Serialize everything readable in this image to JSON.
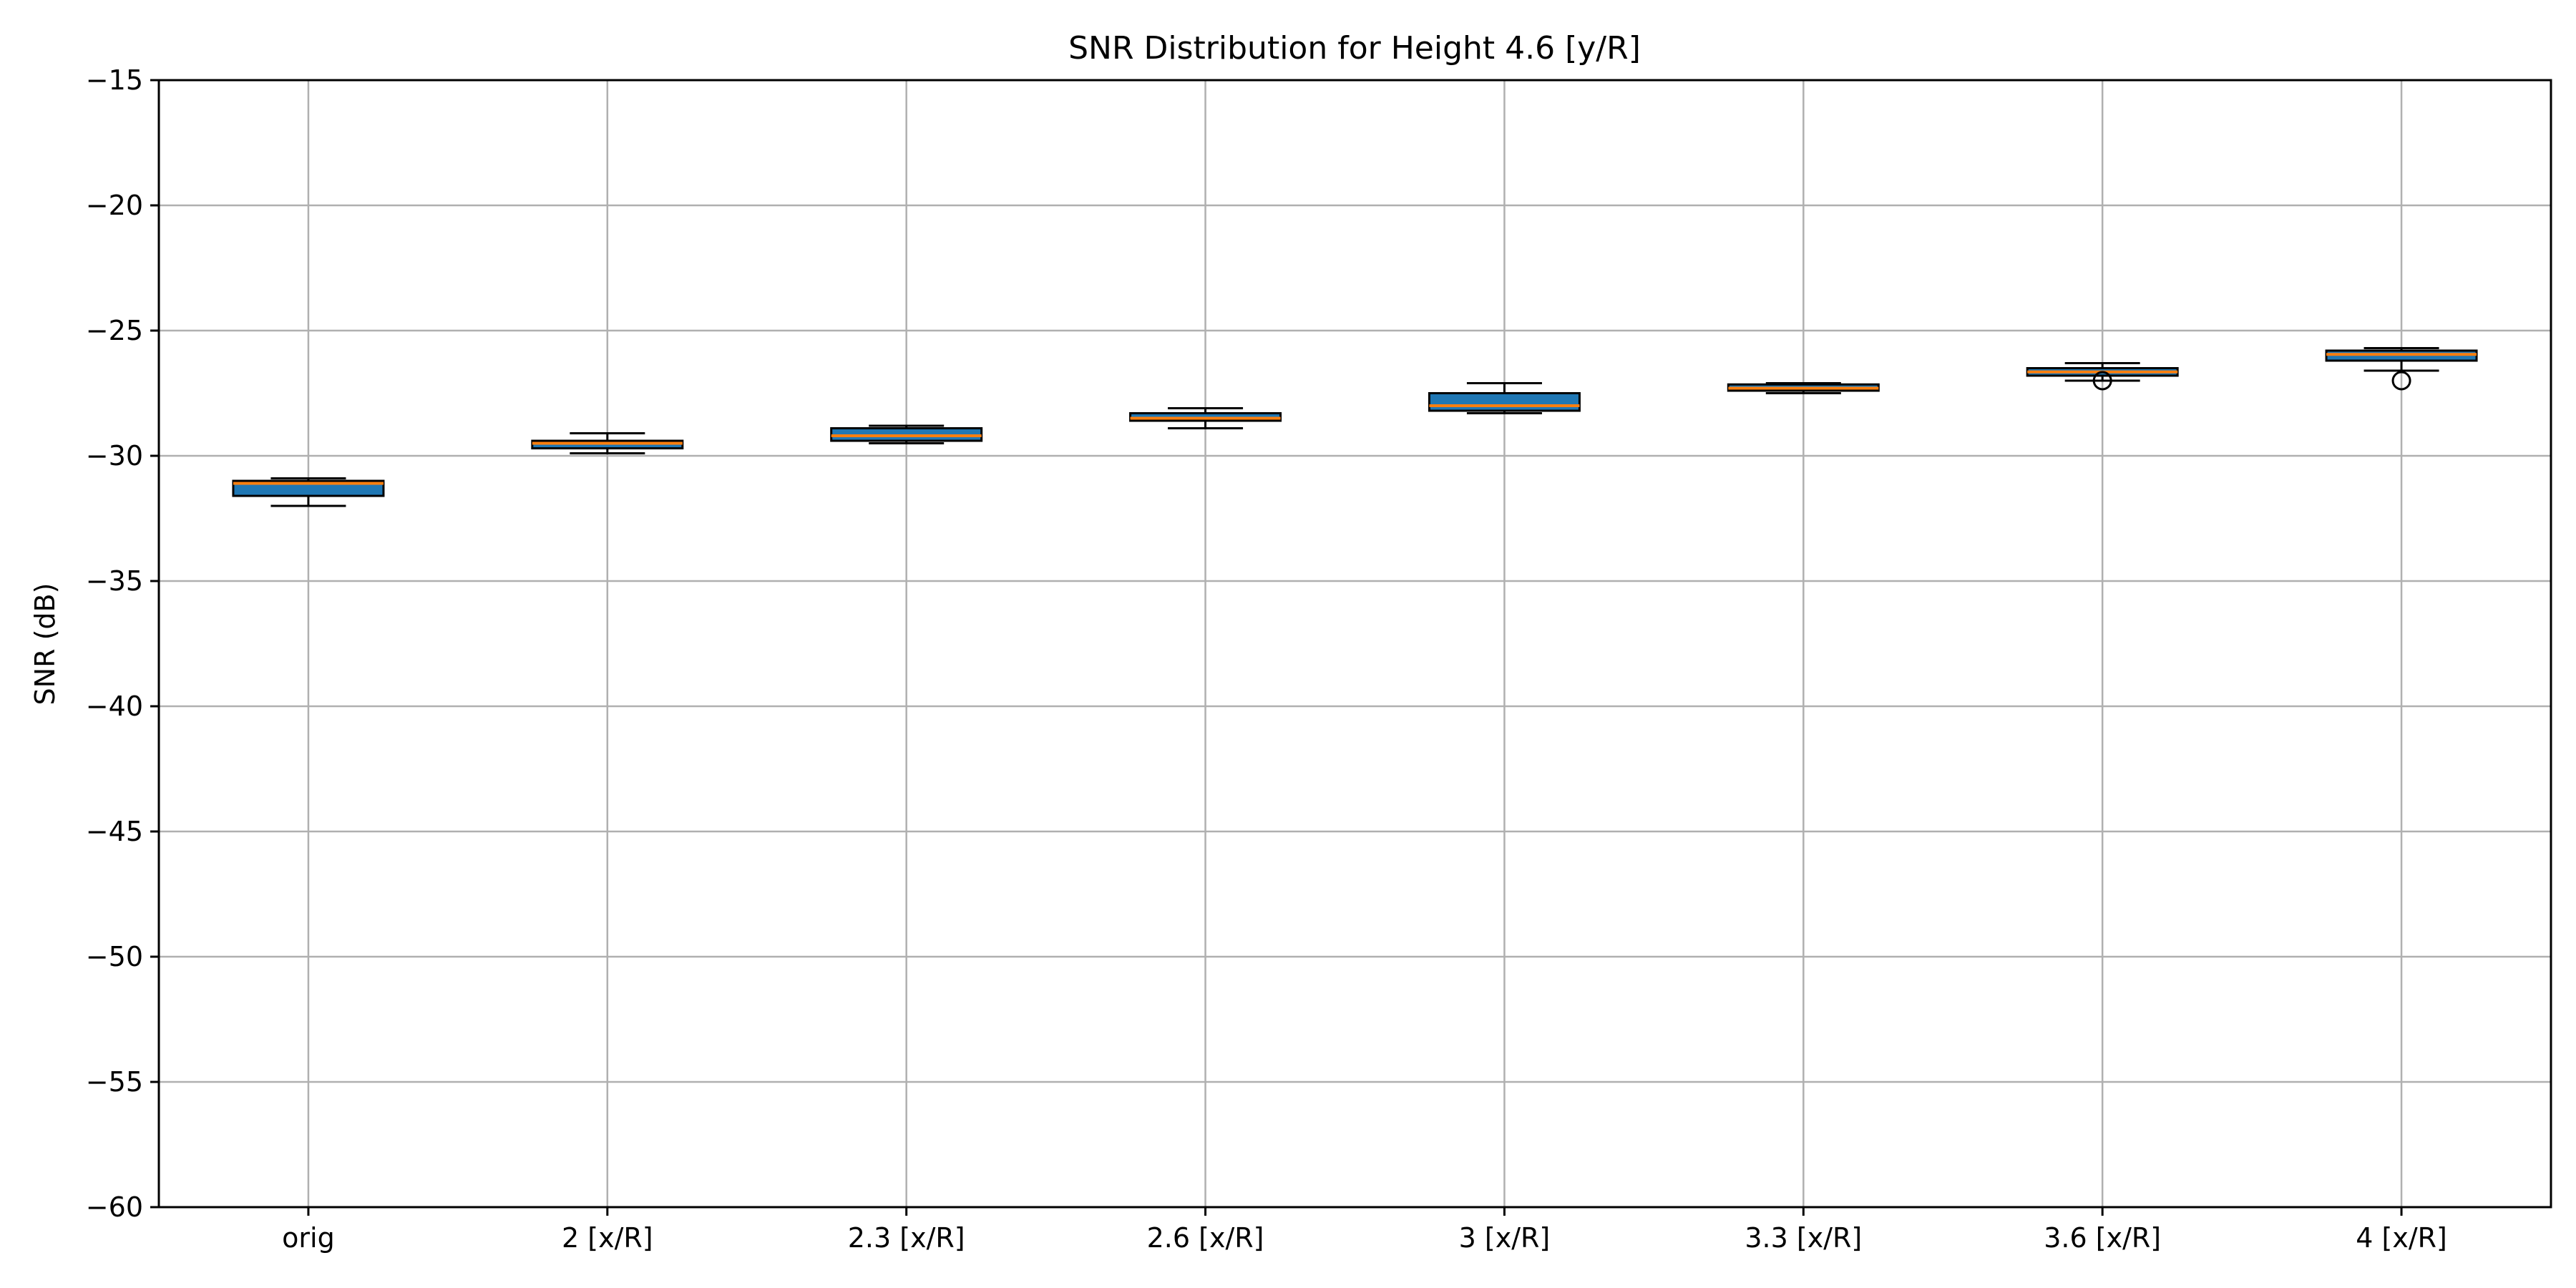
{
  "chart_data": {
    "type": "box",
    "title": "SNR Distribution for Height 4.6 [y/R]",
    "xlabel": "",
    "ylabel": "SNR (dB)",
    "ylim": [
      -60,
      -15
    ],
    "yticks": [
      -15,
      -20,
      -25,
      -30,
      -35,
      -40,
      -45,
      -50,
      -55,
      -60
    ],
    "ytick_labels": [
      "−15",
      "−20",
      "−25",
      "−30",
      "−35",
      "−40",
      "−45",
      "−50",
      "−55",
      "−60"
    ],
    "grid": true,
    "categories": [
      "orig",
      "2 [x/R]",
      "2.3 [x/R]",
      "2.6 [x/R]",
      "3 [x/R]",
      "3.3 [x/R]",
      "3.6 [x/R]",
      "4 [x/R]"
    ],
    "boxes": [
      {
        "whisker_low": -32.0,
        "q1": -31.6,
        "median": -31.1,
        "q3": -31.0,
        "whisker_high": -30.9,
        "outliers": []
      },
      {
        "whisker_low": -29.9,
        "q1": -29.7,
        "median": -29.5,
        "q3": -29.4,
        "whisker_high": -29.1,
        "outliers": []
      },
      {
        "whisker_low": -29.5,
        "q1": -29.4,
        "median": -29.2,
        "q3": -28.9,
        "whisker_high": -28.8,
        "outliers": []
      },
      {
        "whisker_low": -28.9,
        "q1": -28.6,
        "median": -28.5,
        "q3": -28.3,
        "whisker_high": -28.1,
        "outliers": []
      },
      {
        "whisker_low": -28.3,
        "q1": -28.2,
        "median": -28.0,
        "q3": -27.5,
        "whisker_high": -27.1,
        "outliers": []
      },
      {
        "whisker_low": -27.5,
        "q1": -27.4,
        "median": -27.3,
        "q3": -27.15,
        "whisker_high": -27.1,
        "outliers": []
      },
      {
        "whisker_low": -27.0,
        "q1": -26.8,
        "median": -26.65,
        "q3": -26.5,
        "whisker_high": -26.3,
        "outliers": [
          -27.0
        ]
      },
      {
        "whisker_low": -26.6,
        "q1": -26.2,
        "median": -25.95,
        "q3": -25.8,
        "whisker_high": -25.7,
        "outliers": [
          -27.0
        ]
      }
    ],
    "colors": {
      "box_fill": "#1f77b4",
      "median": "#ff7f0e",
      "box_edge": "#000000",
      "grid": "#b0b0b0",
      "axis": "#000000"
    }
  }
}
